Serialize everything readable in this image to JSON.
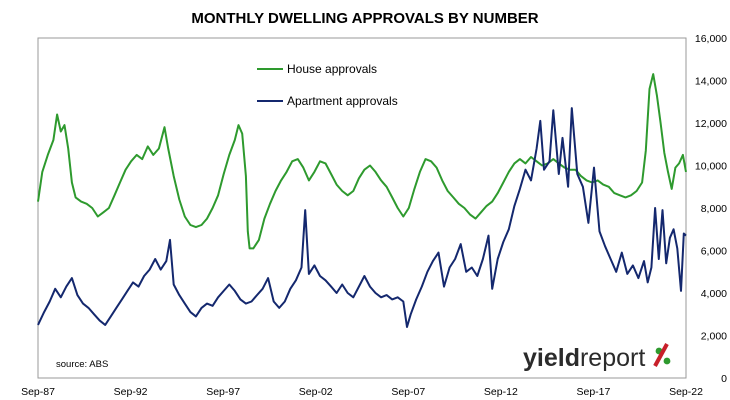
{
  "chart_data": {
    "type": "line",
    "title": "MONTHLY DWELLING APPROVALS BY NUMBER",
    "xlabel": "",
    "ylabel": "",
    "x_ticks": [
      "Sep-87",
      "Sep-92",
      "Sep-97",
      "Sep-02",
      "Sep-07",
      "Sep-12",
      "Sep-17",
      "Sep-22"
    ],
    "x_range": [
      1987.67,
      2022.67
    ],
    "y_ticks": [
      "0",
      "2,000",
      "4,000",
      "6,000",
      "8,000",
      "10,000",
      "12,000",
      "14,000",
      "16,000"
    ],
    "ylim": [
      0,
      16000
    ],
    "grid": "none",
    "legend_position": "upper-left inside plot",
    "series": [
      {
        "name": "House approvals",
        "color": "#2e9a2e",
        "points": [
          [
            1987.67,
            8300
          ],
          [
            1987.9,
            9700
          ],
          [
            1988.2,
            10500
          ],
          [
            1988.5,
            11200
          ],
          [
            1988.7,
            12400
          ],
          [
            1988.9,
            11600
          ],
          [
            1989.1,
            11900
          ],
          [
            1989.3,
            10800
          ],
          [
            1989.5,
            9200
          ],
          [
            1989.7,
            8500
          ],
          [
            1990.0,
            8300
          ],
          [
            1990.3,
            8200
          ],
          [
            1990.6,
            8000
          ],
          [
            1990.9,
            7600
          ],
          [
            1991.2,
            7800
          ],
          [
            1991.5,
            8000
          ],
          [
            1991.8,
            8600
          ],
          [
            1992.1,
            9200
          ],
          [
            1992.4,
            9800
          ],
          [
            1992.7,
            10200
          ],
          [
            1993.0,
            10500
          ],
          [
            1993.3,
            10300
          ],
          [
            1993.6,
            10900
          ],
          [
            1993.9,
            10500
          ],
          [
            1994.2,
            10800
          ],
          [
            1994.5,
            11800
          ],
          [
            1994.7,
            10800
          ],
          [
            1995.0,
            9500
          ],
          [
            1995.3,
            8400
          ],
          [
            1995.6,
            7600
          ],
          [
            1995.9,
            7200
          ],
          [
            1996.2,
            7100
          ],
          [
            1996.5,
            7200
          ],
          [
            1996.8,
            7500
          ],
          [
            1997.1,
            8000
          ],
          [
            1997.4,
            8600
          ],
          [
            1997.7,
            9600
          ],
          [
            1998.0,
            10500
          ],
          [
            1998.3,
            11200
          ],
          [
            1998.5,
            11900
          ],
          [
            1998.7,
            11500
          ],
          [
            1998.9,
            9500
          ],
          [
            1999.0,
            6900
          ],
          [
            1999.1,
            6100
          ],
          [
            1999.3,
            6100
          ],
          [
            1999.6,
            6500
          ],
          [
            1999.9,
            7500
          ],
          [
            2000.2,
            8200
          ],
          [
            2000.5,
            8800
          ],
          [
            2000.8,
            9300
          ],
          [
            2001.1,
            9700
          ],
          [
            2001.4,
            10200
          ],
          [
            2001.7,
            10300
          ],
          [
            2002.0,
            9900
          ],
          [
            2002.3,
            9300
          ],
          [
            2002.6,
            9700
          ],
          [
            2002.9,
            10200
          ],
          [
            2003.2,
            10100
          ],
          [
            2003.5,
            9600
          ],
          [
            2003.8,
            9100
          ],
          [
            2004.1,
            8800
          ],
          [
            2004.4,
            8600
          ],
          [
            2004.7,
            8800
          ],
          [
            2005.0,
            9400
          ],
          [
            2005.3,
            9800
          ],
          [
            2005.6,
            10000
          ],
          [
            2005.9,
            9700
          ],
          [
            2006.2,
            9300
          ],
          [
            2006.5,
            9000
          ],
          [
            2006.8,
            8500
          ],
          [
            2007.1,
            8000
          ],
          [
            2007.4,
            7600
          ],
          [
            2007.7,
            8000
          ],
          [
            2008.0,
            8900
          ],
          [
            2008.3,
            9700
          ],
          [
            2008.6,
            10300
          ],
          [
            2008.9,
            10200
          ],
          [
            2009.2,
            9900
          ],
          [
            2009.5,
            9300
          ],
          [
            2009.8,
            8800
          ],
          [
            2010.1,
            8500
          ],
          [
            2010.4,
            8200
          ],
          [
            2010.7,
            8000
          ],
          [
            2011.0,
            7700
          ],
          [
            2011.3,
            7500
          ],
          [
            2011.6,
            7800
          ],
          [
            2011.9,
            8100
          ],
          [
            2012.2,
            8300
          ],
          [
            2012.5,
            8700
          ],
          [
            2012.8,
            9200
          ],
          [
            2013.1,
            9700
          ],
          [
            2013.4,
            10100
          ],
          [
            2013.7,
            10300
          ],
          [
            2014.0,
            10100
          ],
          [
            2014.3,
            10400
          ],
          [
            2014.6,
            10200
          ],
          [
            2014.9,
            10000
          ],
          [
            2015.2,
            10100
          ],
          [
            2015.5,
            10300
          ],
          [
            2015.8,
            10100
          ],
          [
            2016.1,
            9900
          ],
          [
            2016.4,
            9800
          ],
          [
            2016.7,
            9800
          ],
          [
            2017.0,
            9500
          ],
          [
            2017.3,
            9300
          ],
          [
            2017.6,
            9200
          ],
          [
            2017.9,
            9300
          ],
          [
            2018.2,
            9100
          ],
          [
            2018.5,
            9000
          ],
          [
            2018.8,
            8700
          ],
          [
            2019.1,
            8600
          ],
          [
            2019.4,
            8500
          ],
          [
            2019.7,
            8600
          ],
          [
            2020.0,
            8800
          ],
          [
            2020.3,
            9200
          ],
          [
            2020.5,
            10700
          ],
          [
            2020.7,
            13600
          ],
          [
            2020.9,
            14300
          ],
          [
            2021.1,
            13300
          ],
          [
            2021.3,
            12000
          ],
          [
            2021.5,
            10600
          ],
          [
            2021.7,
            9700
          ],
          [
            2021.9,
            8900
          ],
          [
            2022.1,
            9900
          ],
          [
            2022.3,
            10100
          ],
          [
            2022.5,
            10500
          ],
          [
            2022.67,
            9700
          ]
        ]
      },
      {
        "name": "Apartment approvals",
        "color": "#14286e",
        "points": [
          [
            1987.67,
            2500
          ],
          [
            1988.0,
            3100
          ],
          [
            1988.3,
            3600
          ],
          [
            1988.6,
            4200
          ],
          [
            1988.9,
            3800
          ],
          [
            1989.2,
            4300
          ],
          [
            1989.5,
            4700
          ],
          [
            1989.8,
            3900
          ],
          [
            1990.1,
            3500
          ],
          [
            1990.4,
            3300
          ],
          [
            1990.7,
            3000
          ],
          [
            1991.0,
            2700
          ],
          [
            1991.3,
            2500
          ],
          [
            1991.6,
            2900
          ],
          [
            1991.9,
            3300
          ],
          [
            1992.2,
            3700
          ],
          [
            1992.5,
            4100
          ],
          [
            1992.8,
            4500
          ],
          [
            1993.1,
            4300
          ],
          [
            1993.4,
            4800
          ],
          [
            1993.7,
            5100
          ],
          [
            1994.0,
            5600
          ],
          [
            1994.3,
            5100
          ],
          [
            1994.6,
            5500
          ],
          [
            1994.8,
            6500
          ],
          [
            1995.0,
            4400
          ],
          [
            1995.3,
            3900
          ],
          [
            1995.6,
            3500
          ],
          [
            1995.9,
            3100
          ],
          [
            1996.2,
            2900
          ],
          [
            1996.5,
            3300
          ],
          [
            1996.8,
            3500
          ],
          [
            1997.1,
            3400
          ],
          [
            1997.4,
            3800
          ],
          [
            1997.7,
            4100
          ],
          [
            1998.0,
            4400
          ],
          [
            1998.3,
            4100
          ],
          [
            1998.6,
            3700
          ],
          [
            1998.9,
            3500
          ],
          [
            1999.2,
            3600
          ],
          [
            1999.5,
            3900
          ],
          [
            1999.8,
            4200
          ],
          [
            2000.1,
            4700
          ],
          [
            2000.4,
            3600
          ],
          [
            2000.7,
            3300
          ],
          [
            2001.0,
            3600
          ],
          [
            2001.3,
            4200
          ],
          [
            2001.6,
            4600
          ],
          [
            2001.9,
            5200
          ],
          [
            2002.1,
            7900
          ],
          [
            2002.3,
            4900
          ],
          [
            2002.6,
            5300
          ],
          [
            2002.9,
            4800
          ],
          [
            2003.2,
            4600
          ],
          [
            2003.5,
            4300
          ],
          [
            2003.8,
            4000
          ],
          [
            2004.1,
            4400
          ],
          [
            2004.4,
            4000
          ],
          [
            2004.7,
            3800
          ],
          [
            2005.0,
            4300
          ],
          [
            2005.3,
            4800
          ],
          [
            2005.6,
            4300
          ],
          [
            2005.9,
            4000
          ],
          [
            2006.2,
            3800
          ],
          [
            2006.5,
            3900
          ],
          [
            2006.8,
            3700
          ],
          [
            2007.1,
            3800
          ],
          [
            2007.4,
            3600
          ],
          [
            2007.6,
            2400
          ],
          [
            2007.8,
            3000
          ],
          [
            2008.1,
            3700
          ],
          [
            2008.4,
            4300
          ],
          [
            2008.7,
            5000
          ],
          [
            2009.0,
            5500
          ],
          [
            2009.3,
            5900
          ],
          [
            2009.6,
            4300
          ],
          [
            2009.9,
            5200
          ],
          [
            2010.2,
            5600
          ],
          [
            2010.5,
            6300
          ],
          [
            2010.8,
            5000
          ],
          [
            2011.1,
            5200
          ],
          [
            2011.4,
            4800
          ],
          [
            2011.7,
            5600
          ],
          [
            2012.0,
            6700
          ],
          [
            2012.2,
            4200
          ],
          [
            2012.5,
            5600
          ],
          [
            2012.8,
            6400
          ],
          [
            2013.1,
            7000
          ],
          [
            2013.4,
            8100
          ],
          [
            2013.7,
            8900
          ],
          [
            2014.0,
            9800
          ],
          [
            2014.3,
            9300
          ],
          [
            2014.6,
            10800
          ],
          [
            2014.8,
            12100
          ],
          [
            2015.0,
            9800
          ],
          [
            2015.3,
            10200
          ],
          [
            2015.5,
            12600
          ],
          [
            2015.8,
            9600
          ],
          [
            2016.0,
            11300
          ],
          [
            2016.3,
            9000
          ],
          [
            2016.5,
            12700
          ],
          [
            2016.8,
            9600
          ],
          [
            2017.1,
            9000
          ],
          [
            2017.4,
            7300
          ],
          [
            2017.7,
            9900
          ],
          [
            2018.0,
            6900
          ],
          [
            2018.3,
            6200
          ],
          [
            2018.6,
            5600
          ],
          [
            2018.9,
            5000
          ],
          [
            2019.2,
            5900
          ],
          [
            2019.5,
            4900
          ],
          [
            2019.8,
            5300
          ],
          [
            2020.1,
            4700
          ],
          [
            2020.4,
            5500
          ],
          [
            2020.6,
            4500
          ],
          [
            2020.8,
            5200
          ],
          [
            2021.0,
            8000
          ],
          [
            2021.2,
            5600
          ],
          [
            2021.4,
            7900
          ],
          [
            2021.6,
            5400
          ],
          [
            2021.8,
            6600
          ],
          [
            2022.0,
            7000
          ],
          [
            2022.2,
            6100
          ],
          [
            2022.4,
            4100
          ],
          [
            2022.55,
            6800
          ],
          [
            2022.67,
            6700
          ]
        ]
      }
    ]
  },
  "source": "source: ABS",
  "logo": {
    "brand": "yield",
    "brand2": "report",
    "mark": "%"
  }
}
